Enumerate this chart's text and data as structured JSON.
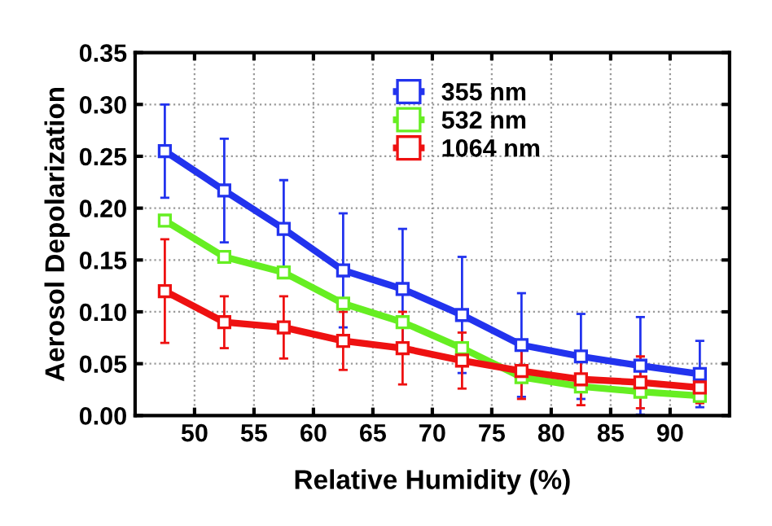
{
  "chart_data": {
    "type": "line",
    "xlabel": "Relative Humidity (%)",
    "ylabel": "Aerosol Depolarization",
    "x": [
      47.5,
      52.5,
      57.5,
      62.5,
      67.5,
      72.5,
      77.5,
      82.5,
      87.5,
      92.5
    ],
    "series": [
      {
        "name": "355 nm",
        "color": "#2233ee",
        "values": [
          0.255,
          0.217,
          0.18,
          0.14,
          0.122,
          0.097,
          0.068,
          0.057,
          0.048,
          0.04
        ],
        "errors": [
          0.045,
          0.05,
          0.047,
          0.055,
          0.058,
          0.056,
          0.05,
          0.041,
          0.047,
          0.032
        ]
      },
      {
        "name": "532 nm",
        "color": "#66ee22",
        "values": [
          0.188,
          0.153,
          0.138,
          0.108,
          0.09,
          0.065,
          0.037,
          0.028,
          0.023,
          0.019
        ]
      },
      {
        "name": "1064 nm",
        "color": "#ee1111",
        "values": [
          0.12,
          0.09,
          0.085,
          0.072,
          0.065,
          0.053,
          0.043,
          0.035,
          0.032,
          0.027
        ],
        "errors": [
          0.05,
          0.025,
          0.03,
          0.028,
          0.035,
          0.027,
          0.027,
          0.025,
          0.025,
          0.015
        ]
      }
    ],
    "xlim": [
      45,
      95
    ],
    "ylim": [
      0,
      0.35
    ],
    "xticks": [
      50,
      55,
      60,
      65,
      70,
      75,
      80,
      85,
      90
    ],
    "yticks": [
      {
        "value": 0,
        "label": "0.00"
      },
      {
        "value": 0.05,
        "label": "0.05"
      },
      {
        "value": 0.1,
        "label": "0.10"
      },
      {
        "value": 0.15,
        "label": "0.15"
      },
      {
        "value": 0.2,
        "label": "0.20"
      },
      {
        "value": 0.25,
        "label": "0.25"
      },
      {
        "value": 0.3,
        "label": "0.30"
      },
      {
        "value": 0.35,
        "label": "0.35"
      }
    ],
    "grid": true,
    "legend": "top right",
    "marker": "square",
    "line_style": "solid"
  }
}
